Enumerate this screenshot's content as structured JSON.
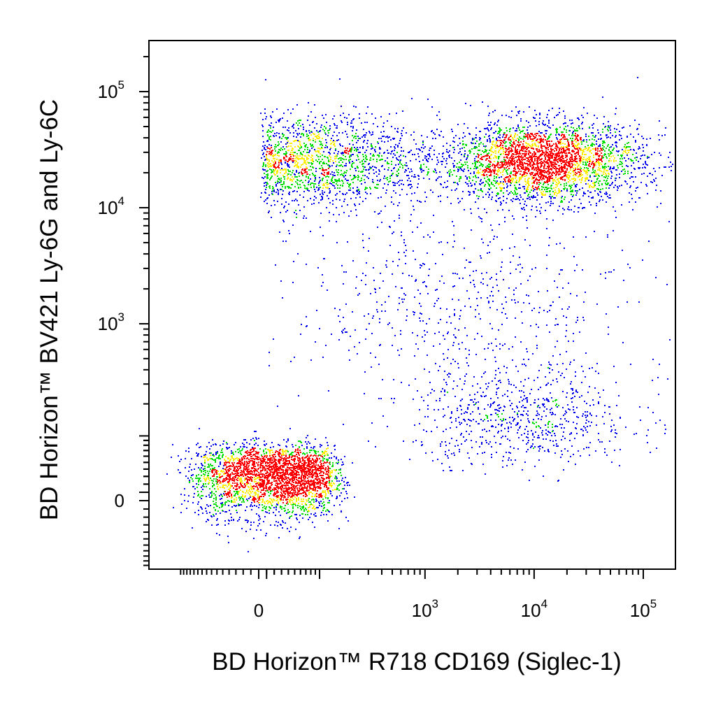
{
  "chart_data": {
    "type": "scatter",
    "title": "",
    "xlabel": "BD Horizon™ R718 CD169 (Siglec-1)",
    "ylabel": "BD Horizon™ BV421 Ly-6G and Ly-6C",
    "x_scale": "biexponential",
    "y_scale": "biexponential",
    "xlim": [
      -150,
      150000
    ],
    "ylim": [
      -150,
      300000
    ],
    "x_ticks": [
      {
        "value": 0,
        "base": "0",
        "exp": ""
      },
      {
        "value": 1000,
        "base": "10",
        "exp": "3"
      },
      {
        "value": 10000,
        "base": "10",
        "exp": "4"
      },
      {
        "value": 100000,
        "base": "10",
        "exp": "5"
      }
    ],
    "y_ticks": [
      {
        "value": 0,
        "base": "0",
        "exp": ""
      },
      {
        "value": 1000,
        "base": "10",
        "exp": "3"
      },
      {
        "value": 10000,
        "base": "10",
        "exp": "4"
      },
      {
        "value": 100000,
        "base": "10",
        "exp": "5"
      }
    ],
    "density_colors": [
      "#0000ee",
      "#00dd00",
      "#ffee00",
      "#ff0000"
    ],
    "populations": [
      {
        "x_center": 20,
        "y_center": 30,
        "x_spread": 60,
        "y_spread": 25,
        "share": 0.33
      },
      {
        "x_center": 12000,
        "y_center": 25000,
        "x_spread_log10": 0.45,
        "y_spread_log10": 0.17,
        "share": 0.34
      },
      {
        "x_center": 100,
        "y_center": 25000,
        "x_spread_log10": 0.55,
        "y_spread_log10": 0.2,
        "share": 0.18
      },
      {
        "x_center": 8000,
        "y_center": 150,
        "x_spread_log10": 0.5,
        "y_spread_log10": 0.25,
        "share": 0.08
      },
      {
        "x_center": 2000,
        "y_center": 1500,
        "x_spread_log10": 0.8,
        "y_spread_log10": 0.45,
        "share": 0.07
      }
    ],
    "grid": false,
    "legend": "none"
  }
}
